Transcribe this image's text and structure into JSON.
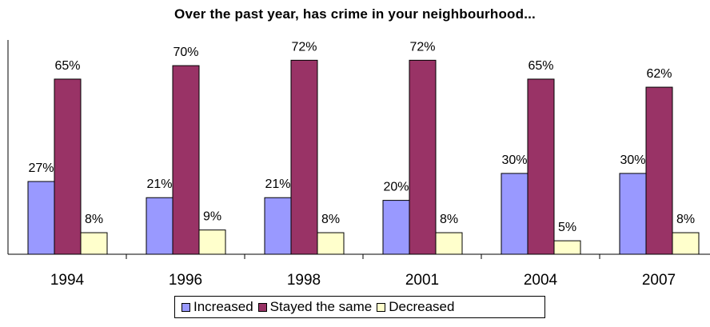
{
  "chart_data": {
    "type": "bar",
    "title": "Over the past year, has crime in your neighbourhood...",
    "categories": [
      "1994",
      "1996",
      "1998",
      "2001",
      "2004",
      "2007"
    ],
    "series": [
      {
        "name": "Increased",
        "values": [
          27,
          21,
          21,
          20,
          30,
          30
        ],
        "labels": [
          "27%",
          "21%",
          "21%",
          "20%",
          "30%",
          "30%"
        ],
        "color": "#9999ff"
      },
      {
        "name": "Stayed the same",
        "values": [
          65,
          70,
          72,
          72,
          65,
          62
        ],
        "labels": [
          "65%",
          "70%",
          "72%",
          "72%",
          "65%",
          "62%"
        ],
        "color": "#993366"
      },
      {
        "name": "Decreased",
        "values": [
          8,
          9,
          8,
          8,
          5,
          8
        ],
        "labels": [
          "8%",
          "9%",
          "8%",
          "8%",
          "5%",
          "8%"
        ],
        "color": "#ffffcc"
      }
    ],
    "ylim": [
      0,
      80
    ],
    "grid": false,
    "legend_position": "bottom"
  }
}
